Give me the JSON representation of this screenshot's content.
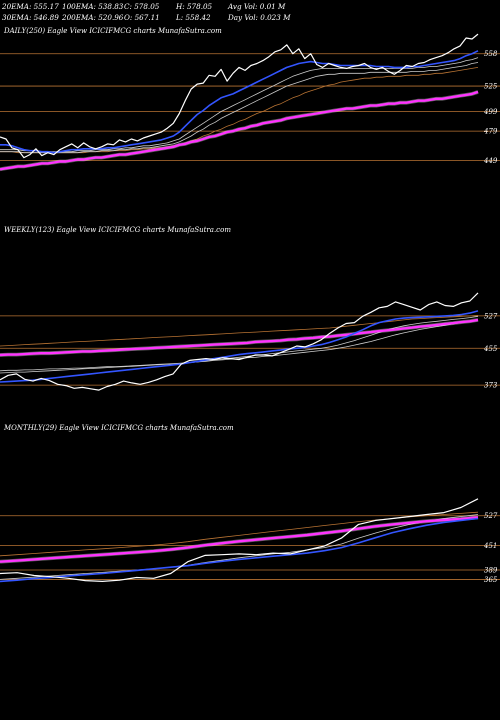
{
  "header": {
    "row1": [
      "20EMA: 555.17",
      "100EMA: 538.83",
      "C: 578.05",
      "H: 578.05",
      "Avg Vol: 0.01 M"
    ],
    "row2": [
      "30EMA: 546.89",
      "200EMA: 520.96",
      "O: 567.11",
      "L: 558.42",
      "Day Vol: 0.023 M"
    ]
  },
  "colors": {
    "background": "#000000",
    "price": "#ffffff",
    "ema_short": "#3355ff",
    "ema_long": "#ff33ff",
    "ma_mid": "#cccccc",
    "ma_brown": "#b87333",
    "grid": "#b87333"
  },
  "chart_data": [
    {
      "type": "line",
      "title": "DAILY(250) Eagle  View  ICICIFMCG charts MunafaSutra.com",
      "yticks": [
        558,
        525,
        499,
        479,
        449
      ],
      "ylim": [
        424,
        572
      ],
      "series": [
        {
          "role": "price",
          "values": [
            473,
            471,
            462,
            460,
            452,
            455,
            461,
            454,
            457,
            455,
            460,
            463,
            466,
            462,
            467,
            463,
            461,
            463,
            466,
            465,
            470,
            468,
            471,
            469,
            472,
            474,
            476,
            478,
            482,
            487,
            497,
            510,
            522,
            527,
            528,
            536,
            535,
            542,
            530,
            538,
            544,
            541,
            546,
            548,
            551,
            555,
            560,
            562,
            567,
            558,
            563,
            553,
            558,
            547,
            544,
            548,
            546,
            544,
            543,
            545,
            546,
            548,
            544,
            542,
            544,
            540,
            537,
            541,
            546,
            545,
            548,
            549,
            552,
            554,
            556,
            559,
            563,
            566,
            574,
            573,
            578
          ]
        },
        {
          "role": "ema_short",
          "values": [
            465,
            465,
            464,
            462,
            460,
            459,
            459,
            458,
            458,
            457,
            458,
            459,
            460,
            460,
            461,
            461,
            461,
            461,
            462,
            462,
            463,
            464,
            465,
            466,
            467,
            468,
            469,
            470,
            472,
            474,
            478,
            484,
            490,
            496,
            500,
            505,
            509,
            513,
            515,
            517,
            520,
            523,
            526,
            529,
            532,
            535,
            538,
            541,
            544,
            546,
            548,
            549,
            550,
            549,
            548,
            548,
            547,
            546,
            546,
            546,
            546,
            546,
            546,
            545,
            545,
            545,
            544,
            544,
            544,
            545,
            545,
            546,
            547,
            548,
            549,
            550,
            551,
            553,
            556,
            558,
            561
          ]
        },
        {
          "role": "ma_mid",
          "values": [
            460,
            460,
            460,
            460,
            459,
            459,
            459,
            458,
            458,
            458,
            458,
            458,
            458,
            459,
            459,
            459,
            460,
            460,
            460,
            461,
            461,
            462,
            462,
            463,
            464,
            464,
            465,
            466,
            467,
            469,
            471,
            475,
            479,
            483,
            487,
            491,
            495,
            499,
            502,
            505,
            508,
            511,
            514,
            517,
            520,
            523,
            526,
            529,
            532,
            535,
            537,
            539,
            541,
            542,
            543,
            543,
            543,
            543,
            543,
            543,
            543,
            543,
            543,
            543,
            543,
            543,
            543,
            543,
            543,
            543,
            544,
            544,
            545,
            545,
            546,
            547,
            548,
            549,
            551,
            552,
            554
          ]
        },
        {
          "role": "ma_mid",
          "values": [
            458,
            458,
            458,
            458,
            457,
            457,
            457,
            457,
            457,
            457,
            457,
            457,
            457,
            457,
            458,
            458,
            458,
            459,
            459,
            459,
            460,
            460,
            461,
            461,
            462,
            462,
            463,
            464,
            465,
            466,
            468,
            471,
            474,
            478,
            481,
            485,
            488,
            492,
            495,
            498,
            501,
            504,
            507,
            510,
            513,
            516,
            519,
            522,
            525,
            527,
            529,
            531,
            533,
            535,
            536,
            537,
            537,
            538,
            538,
            538,
            538,
            538,
            539,
            539,
            539,
            539,
            539,
            539,
            539,
            540,
            540,
            540,
            541,
            541,
            542,
            543,
            544,
            545,
            546,
            548,
            549
          ]
        },
        {
          "role": "ma_brown",
          "values": [
            458,
            458,
            458,
            457,
            457,
            457,
            457,
            457,
            457,
            457,
            457,
            457,
            457,
            457,
            457,
            458,
            458,
            458,
            458,
            459,
            459,
            459,
            460,
            460,
            461,
            461,
            462,
            462,
            463,
            464,
            465,
            467,
            469,
            471,
            474,
            476,
            479,
            481,
            484,
            486,
            489,
            491,
            494,
            497,
            499,
            502,
            505,
            507,
            510,
            513,
            515,
            518,
            520,
            522,
            524,
            526,
            527,
            529,
            530,
            531,
            532,
            533,
            533,
            534,
            534,
            535,
            535,
            535,
            536,
            536,
            536,
            537,
            537,
            538,
            538,
            539,
            540,
            541,
            542,
            543,
            544
          ]
        },
        {
          "role": "ema_long",
          "values": [
            440,
            441,
            442,
            443,
            443,
            444,
            445,
            446,
            446,
            447,
            448,
            448,
            449,
            450,
            450,
            451,
            452,
            452,
            453,
            454,
            455,
            455,
            456,
            457,
            458,
            459,
            460,
            461,
            462,
            463,
            465,
            466,
            468,
            469,
            471,
            473,
            474,
            476,
            478,
            479,
            481,
            482,
            484,
            485,
            487,
            488,
            489,
            490,
            492,
            493,
            494,
            495,
            496,
            497,
            498,
            499,
            500,
            501,
            502,
            502,
            503,
            504,
            505,
            505,
            506,
            507,
            507,
            508,
            508,
            509,
            510,
            510,
            511,
            512,
            512,
            513,
            514,
            515,
            516,
            517,
            519
          ]
        }
      ]
    },
    {
      "type": "line",
      "title": "WEEKLY(123) Eagle  View  ICICIFMCG charts MunafaSutra.com",
      "yticks": [
        527,
        455,
        373
      ],
      "ylim": [
        340,
        580
      ],
      "series": [
        {
          "role": "price",
          "values": [
            385,
            395,
            398,
            386,
            382,
            388,
            383,
            375,
            372,
            366,
            368,
            365,
            362,
            370,
            375,
            382,
            378,
            375,
            379,
            385,
            392,
            398,
            420,
            428,
            430,
            432,
            430,
            434,
            432,
            430,
            435,
            440,
            440,
            438,
            445,
            452,
            460,
            458,
            465,
            474,
            488,
            500,
            510,
            512,
            526,
            535,
            545,
            548,
            558,
            552,
            546,
            540,
            552,
            558,
            550,
            548,
            556,
            560,
            578
          ]
        },
        {
          "role": "ema_short",
          "values": [
            380,
            381,
            382,
            383,
            384,
            386,
            388,
            390,
            392,
            394,
            396,
            398,
            400,
            402,
            404,
            406,
            408,
            410,
            412,
            414,
            416,
            418,
            420,
            423,
            426,
            429,
            432,
            435,
            438,
            441,
            443,
            445,
            447,
            449,
            451,
            453,
            455,
            457,
            460,
            463,
            468,
            474,
            480,
            488,
            496,
            505,
            512,
            516,
            520,
            522,
            523,
            524,
            525,
            526,
            527,
            528,
            530,
            533,
            538
          ]
        },
        {
          "role": "ma_mid",
          "values": [
            400,
            401,
            402,
            402,
            403,
            404,
            405,
            406,
            407,
            408,
            409,
            410,
            411,
            412,
            413,
            414,
            415,
            416,
            417,
            418,
            419,
            420,
            421,
            423,
            425,
            427,
            429,
            431,
            433,
            435,
            437,
            439,
            441,
            443,
            445,
            447,
            449,
            451,
            453,
            455,
            458,
            462,
            467,
            472,
            478,
            484,
            490,
            496,
            501,
            505,
            508,
            511,
            513,
            515,
            517,
            519,
            521,
            523,
            526
          ]
        },
        {
          "role": "ma_mid",
          "values": [
            405,
            406,
            406,
            407,
            407,
            408,
            409,
            409,
            410,
            411,
            411,
            412,
            413,
            414,
            414,
            415,
            416,
            417,
            418,
            419,
            420,
            421,
            422,
            423,
            425,
            426,
            428,
            429,
            431,
            432,
            434,
            435,
            437,
            438,
            440,
            442,
            444,
            446,
            448,
            450,
            452,
            455,
            458,
            462,
            466,
            470,
            475,
            480,
            485,
            489,
            493,
            497,
            500,
            503,
            506,
            509,
            512,
            515,
            518
          ]
        },
        {
          "role": "ema_long",
          "values": [
            440,
            441,
            441,
            442,
            443,
            444,
            444,
            445,
            446,
            447,
            448,
            448,
            449,
            450,
            451,
            452,
            453,
            454,
            455,
            456,
            457,
            458,
            459,
            460,
            461,
            462,
            463,
            464,
            465,
            466,
            467,
            469,
            470,
            471,
            472,
            474,
            475,
            477,
            478,
            480,
            481,
            483,
            485,
            487,
            489,
            491,
            493,
            495,
            497,
            499,
            501,
            503,
            505,
            507,
            509,
            511,
            513,
            515,
            518
          ]
        },
        {
          "role": "ma_brown",
          "values": [
            460,
            461,
            462,
            463,
            464,
            465,
            466,
            467,
            468,
            469,
            470,
            471,
            472,
            473,
            474,
            475,
            476,
            477,
            478,
            479,
            480,
            481,
            482,
            483,
            484,
            485,
            486,
            487,
            488,
            489,
            490,
            491,
            492,
            493,
            494,
            495,
            496,
            497,
            498,
            499,
            500,
            502,
            504,
            506,
            508,
            510,
            512,
            514,
            516,
            518,
            520,
            521,
            522,
            523,
            524,
            525,
            526,
            527,
            528
          ]
        }
      ]
    },
    {
      "type": "line",
      "title": "MONTHLY(29) Eagle  View  ICICIFMCG charts MunafaSutra.com",
      "yticks": [
        527,
        451,
        389,
        365
      ],
      "ylim": [
        300,
        600
      ],
      "series": [
        {
          "role": "price",
          "values": [
            380,
            382,
            375,
            372,
            368,
            362,
            360,
            363,
            370,
            368,
            380,
            410,
            426,
            428,
            430,
            428,
            432,
            430,
            440,
            450,
            470,
            505,
            515,
            520,
            525,
            530,
            535,
            548,
            570
          ]
        },
        {
          "role": "ema_short",
          "values": [
            360,
            363,
            367,
            370,
            374,
            377,
            380,
            384,
            388,
            392,
            396,
            400,
            406,
            411,
            416,
            420,
            424,
            428,
            432,
            438,
            446,
            458,
            471,
            484,
            494,
            503,
            510,
            515,
            520
          ]
        },
        {
          "role": "ma_mid",
          "values": [
            365,
            368,
            371,
            374,
            377,
            380,
            383,
            386,
            389,
            392,
            396,
            401,
            408,
            414,
            420,
            425,
            430,
            434,
            440,
            446,
            455,
            470,
            483,
            495,
            505,
            513,
            520,
            525,
            530
          ]
        },
        {
          "role": "ema_long",
          "values": [
            410,
            413,
            416,
            419,
            422,
            425,
            428,
            431,
            434,
            437,
            441,
            446,
            452,
            457,
            462,
            466,
            470,
            474,
            478,
            483,
            488,
            494,
            500,
            505,
            509,
            513,
            516,
            519,
            523
          ]
        },
        {
          "role": "ma_brown",
          "values": [
            425,
            428,
            431,
            434,
            437,
            440,
            443,
            446,
            449,
            452,
            456,
            461,
            467,
            472,
            477,
            482,
            487,
            492,
            497,
            502,
            507,
            512,
            516,
            520,
            524,
            527,
            530,
            533,
            536
          ]
        }
      ]
    }
  ]
}
